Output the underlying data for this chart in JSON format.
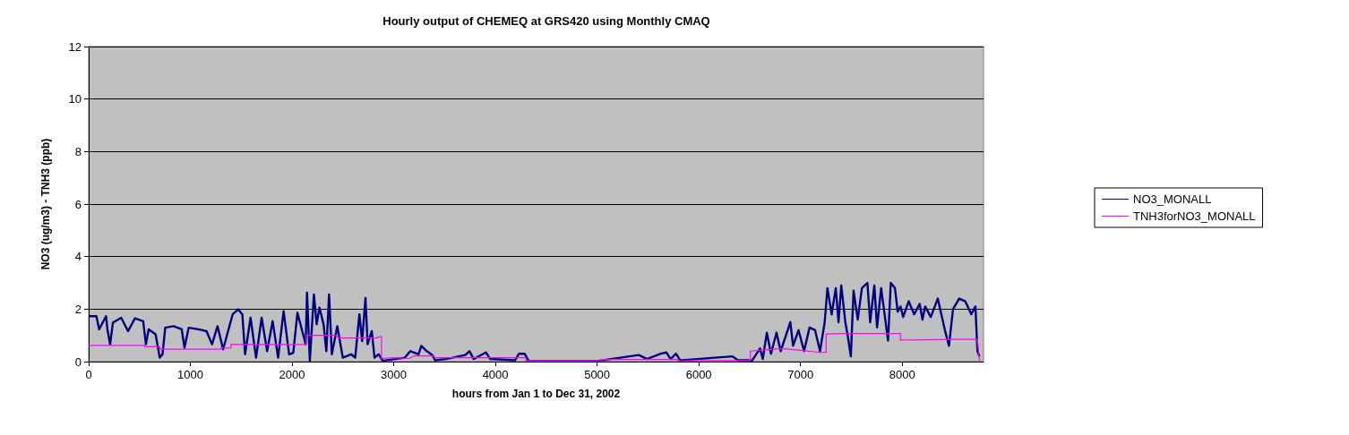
{
  "chart_data": {
    "type": "line",
    "title": "Hourly output of CHEMEQ at GRS420 using Monthly CMAQ",
    "xlabel": "hours from Jan 1 to Dec 31, 2002",
    "ylabel": "NO3 (ug/m3) - TNH3 (ppb)",
    "xlim": [
      0,
      8800
    ],
    "xticks": [
      0,
      1000,
      2000,
      3000,
      4000,
      5000,
      6000,
      7000,
      8000
    ],
    "ylim": [
      0,
      12
    ],
    "yticks": [
      0,
      2,
      4,
      6,
      8,
      10,
      12
    ],
    "grid": "y",
    "legend": "right",
    "marker": "none",
    "line_style": "solid",
    "series": [
      {
        "name": "NO3_MONALL",
        "color": "#000080",
        "x": [
          0,
          76,
          103,
          171,
          184,
          211,
          238,
          320,
          387,
          455,
          536,
          563,
          590,
          658,
          699,
          726,
          753,
          834,
          915,
          942,
          983,
          1078,
          1159,
          1213,
          1267,
          1322,
          1389,
          1416,
          1470,
          1511,
          1538,
          1592,
          1646,
          1701,
          1755,
          1809,
          1863,
          1917,
          1971,
          2012,
          2053,
          2134,
          2147,
          2175,
          2215,
          2242,
          2269,
          2310,
          2337,
          2364,
          2391,
          2445,
          2499,
          2581,
          2621,
          2662,
          2689,
          2722,
          2743,
          2784,
          2811,
          2852,
          2892,
          3000,
          3109,
          3163,
          3244,
          3271,
          3325,
          3379,
          3406,
          3515,
          3704,
          3745,
          3786,
          3907,
          3948,
          4192,
          4232,
          4287,
          4327,
          4600,
          5000,
          5410,
          5490,
          5627,
          5681,
          5722,
          5776,
          5817,
          6331,
          6385,
          6493,
          6521,
          6602,
          6629,
          6669,
          6710,
          6764,
          6805,
          6900,
          6927,
          6981,
          7035,
          7089,
          7143,
          7192,
          7238,
          7265,
          7306,
          7347,
          7374,
          7401,
          7441,
          7468,
          7495,
          7522,
          7563,
          7604,
          7658,
          7685,
          7726,
          7753,
          7793,
          7834,
          7861,
          7888,
          7929,
          7956,
          7983,
          8010,
          8064,
          8118,
          8172,
          8199,
          8226,
          8281,
          8350,
          8420,
          8460,
          8500,
          8560,
          8620,
          8680,
          8720,
          8740,
          8760
        ],
        "values": [
          1.73,
          1.73,
          1.23,
          1.73,
          1.23,
          0.66,
          1.48,
          1.67,
          1.16,
          1.65,
          1.54,
          0.66,
          1.23,
          1.04,
          0.15,
          0.28,
          1.29,
          1.35,
          1.23,
          0.53,
          1.29,
          1.23,
          1.16,
          0.66,
          1.35,
          0.47,
          1.42,
          1.8,
          1.99,
          1.8,
          0.28,
          1.67,
          0.15,
          1.67,
          0.4,
          1.54,
          0.15,
          1.92,
          0.28,
          0.34,
          1.86,
          0.66,
          2.63,
          0.03,
          2.56,
          1.42,
          2.06,
          1.42,
          0.4,
          2.56,
          0.28,
          1.35,
          0.15,
          0.28,
          0.15,
          1.8,
          0.78,
          2.42,
          0.66,
          1.16,
          0.15,
          0.28,
          0.03,
          0.09,
          0.15,
          0.4,
          0.28,
          0.6,
          0.4,
          0.25,
          0.05,
          0.1,
          0.25,
          0.4,
          0.1,
          0.35,
          0.1,
          0.05,
          0.3,
          0.3,
          0.02,
          0.02,
          0.02,
          0.25,
          0.1,
          0.3,
          0.35,
          0.1,
          0.3,
          0.05,
          0.2,
          0.05,
          0.05,
          0.02,
          0.5,
          0.1,
          1.1,
          0.3,
          1.1,
          0.4,
          1.5,
          0.6,
          1.2,
          0.4,
          1.3,
          1.2,
          0.4,
          1.5,
          2.8,
          1.8,
          2.8,
          1.5,
          2.9,
          1.5,
          0.9,
          0.2,
          2.7,
          1.6,
          2.8,
          3.0,
          1.5,
          2.9,
          1.3,
          2.8,
          1.6,
          0.8,
          3.0,
          2.8,
          1.9,
          2.1,
          1.7,
          2.3,
          1.8,
          2.2,
          1.6,
          2.1,
          1.7,
          2.4,
          1.2,
          0.6,
          2.0,
          2.4,
          2.3,
          1.8,
          2.1,
          0.4,
          0.2
        ]
      },
      {
        "name": "TNH3forNO3_MONALL",
        "color": "#ff00ff",
        "x": [
          0,
          550,
          550,
          700,
          700,
          1300,
          1300,
          1400,
          1400,
          2140,
          2140,
          2450,
          2450,
          2830,
          2860,
          2880,
          2880,
          3000,
          3150,
          3200,
          3330,
          3400,
          3400,
          4300,
          4300,
          5045,
          5045,
          5790,
          5790,
          6060,
          6507,
          6507,
          6656,
          6818,
          6954,
          7197,
          7252,
          7252,
          7441,
          7956,
          7983,
          7983,
          8500,
          8700,
          8740,
          8760
        ],
        "values": [
          0.62,
          0.62,
          0.57,
          0.57,
          0.47,
          0.47,
          0.52,
          0.52,
          0.65,
          0.65,
          1.0,
          1.0,
          0.9,
          0.9,
          0.95,
          0.95,
          0.12,
          0.15,
          0.12,
          0.22,
          0.22,
          0.22,
          0.15,
          0.15,
          0.02,
          0.02,
          0.08,
          0.08,
          0.02,
          0.04,
          0.04,
          0.4,
          0.45,
          0.5,
          0.45,
          0.35,
          0.35,
          1.05,
          1.07,
          1.07,
          1.07,
          0.82,
          0.85,
          0.85,
          0.85,
          0.02
        ]
      }
    ]
  }
}
